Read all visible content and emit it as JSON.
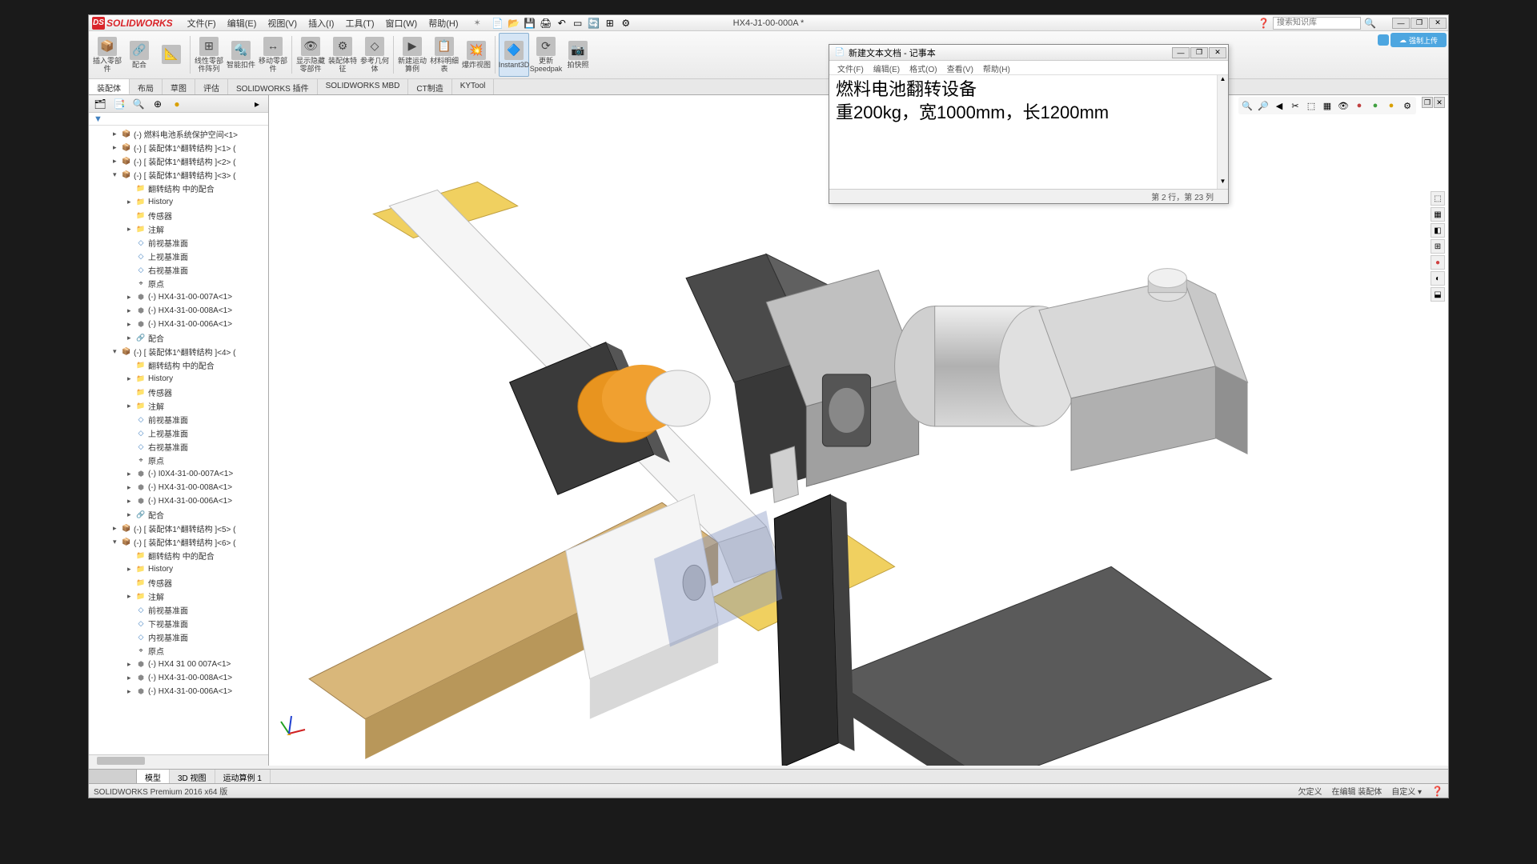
{
  "app": {
    "logo_text": "SOLIDWORKS",
    "doc_title": "HX4-J1-00-000A *",
    "search_placeholder": "搜索知识库",
    "cloud_label": "强制上传"
  },
  "menus": [
    "文件(F)",
    "编辑(E)",
    "视图(V)",
    "插入(I)",
    "工具(T)",
    "窗口(W)",
    "帮助(H)"
  ],
  "ribbon": [
    {
      "label": "插入零部件",
      "icon": "📦"
    },
    {
      "label": "配合",
      "icon": "🔗"
    },
    {
      "label": "",
      "icon": "📐"
    },
    {
      "label": "线性零部件阵列",
      "icon": "⊞"
    },
    {
      "label": "智能扣件",
      "icon": "🔩"
    },
    {
      "label": "移动零部件",
      "icon": "↔"
    },
    {
      "label": "显示隐藏零部件",
      "icon": "👁"
    },
    {
      "label": "装配体特征",
      "icon": "⚙"
    },
    {
      "label": "参考几何体",
      "icon": "◇"
    },
    {
      "label": "新建运动算例",
      "icon": "▶"
    },
    {
      "label": "材料明细表",
      "icon": "📋"
    },
    {
      "label": "爆炸视图",
      "icon": "💥"
    },
    {
      "label": "Instant3D",
      "icon": "🔷",
      "selected": true
    },
    {
      "label": "更新Speedpak",
      "icon": "⟳"
    },
    {
      "label": "拍快照",
      "icon": "📷"
    }
  ],
  "tabs": [
    "装配体",
    "布局",
    "草图",
    "评估",
    "SOLIDWORKS 插件",
    "SOLIDWORKS MBD",
    "CT制造",
    "KYTool"
  ],
  "tree": [
    {
      "lvl": 1,
      "exp": "▸",
      "icon": "asm",
      "label": "(-) 燃料电池系统保护空间<1>"
    },
    {
      "lvl": 1,
      "exp": "▸",
      "icon": "asm",
      "label": "(-) [ 装配体1^翻转结构 ]<1> ("
    },
    {
      "lvl": 1,
      "exp": "▸",
      "icon": "asm",
      "label": "(-) [ 装配体1^翻转结构 ]<2> ("
    },
    {
      "lvl": 1,
      "exp": "▾",
      "icon": "asm",
      "label": "(-) [ 装配体1^翻转结构 ]<3> ("
    },
    {
      "lvl": 2,
      "exp": "",
      "icon": "folder",
      "label": "翻转结构 中的配合"
    },
    {
      "lvl": 2,
      "exp": "▸",
      "icon": "folder",
      "label": "History"
    },
    {
      "lvl": 2,
      "exp": "",
      "icon": "folder",
      "label": "传感器"
    },
    {
      "lvl": 2,
      "exp": "▸",
      "icon": "folder",
      "label": "注解"
    },
    {
      "lvl": 2,
      "exp": "",
      "icon": "plane",
      "label": "前视基准面"
    },
    {
      "lvl": 2,
      "exp": "",
      "icon": "plane",
      "label": "上视基准面"
    },
    {
      "lvl": 2,
      "exp": "",
      "icon": "plane",
      "label": "右视基准面"
    },
    {
      "lvl": 2,
      "exp": "",
      "icon": "origin",
      "label": "原点"
    },
    {
      "lvl": 2,
      "exp": "▸",
      "icon": "part",
      "label": "(-) HX4-31-00-007A<1>"
    },
    {
      "lvl": 2,
      "exp": "▸",
      "icon": "part",
      "label": "(-) HX4-31-00-008A<1>"
    },
    {
      "lvl": 2,
      "exp": "▸",
      "icon": "part",
      "label": "(-) HX4-31-00-006A<1>"
    },
    {
      "lvl": 2,
      "exp": "▸",
      "icon": "mate",
      "label": "配合"
    },
    {
      "lvl": 1,
      "exp": "▾",
      "icon": "asm",
      "label": "(-) [ 装配体1^翻转结构 ]<4> ("
    },
    {
      "lvl": 2,
      "exp": "",
      "icon": "folder",
      "label": "翻转结构 中的配合"
    },
    {
      "lvl": 2,
      "exp": "▸",
      "icon": "folder",
      "label": "History"
    },
    {
      "lvl": 2,
      "exp": "",
      "icon": "folder",
      "label": "传感器"
    },
    {
      "lvl": 2,
      "exp": "▸",
      "icon": "folder",
      "label": "注解"
    },
    {
      "lvl": 2,
      "exp": "",
      "icon": "plane",
      "label": "前视基准面"
    },
    {
      "lvl": 2,
      "exp": "",
      "icon": "plane",
      "label": "上视基准面"
    },
    {
      "lvl": 2,
      "exp": "",
      "icon": "plane",
      "label": "右视基准面"
    },
    {
      "lvl": 2,
      "exp": "",
      "icon": "origin",
      "label": "原点"
    },
    {
      "lvl": 2,
      "exp": "▸",
      "icon": "part",
      "label": "(-) I0X4-31-00-007A<1>"
    },
    {
      "lvl": 2,
      "exp": "▸",
      "icon": "part",
      "label": "(-) HX4-31-00-008A<1>"
    },
    {
      "lvl": 2,
      "exp": "▸",
      "icon": "part",
      "label": "(-) HX4-31-00-006A<1>"
    },
    {
      "lvl": 2,
      "exp": "▸",
      "icon": "mate",
      "label": "配合"
    },
    {
      "lvl": 1,
      "exp": "▸",
      "icon": "asm",
      "label": "(-) [ 装配体1^翻转结构 ]<5> ("
    },
    {
      "lvl": 1,
      "exp": "▾",
      "icon": "asm",
      "label": "(-) [ 装配体1^翻转结构 ]<6> ("
    },
    {
      "lvl": 2,
      "exp": "",
      "icon": "folder",
      "label": "翻转结构 中的配合"
    },
    {
      "lvl": 2,
      "exp": "▸",
      "icon": "folder",
      "label": "History"
    },
    {
      "lvl": 2,
      "exp": "",
      "icon": "folder",
      "label": "传感器"
    },
    {
      "lvl": 2,
      "exp": "▸",
      "icon": "folder",
      "label": "注解"
    },
    {
      "lvl": 2,
      "exp": "",
      "icon": "plane",
      "label": "前视基准面"
    },
    {
      "lvl": 2,
      "exp": "",
      "icon": "plane",
      "label": "下视基准面"
    },
    {
      "lvl": 2,
      "exp": "",
      "icon": "plane",
      "label": "内视基准面"
    },
    {
      "lvl": 2,
      "exp": "",
      "icon": "origin",
      "label": "原点"
    },
    {
      "lvl": 2,
      "exp": "▸",
      "icon": "part",
      "label": "(-) HX4 31 00 007A<1>"
    },
    {
      "lvl": 2,
      "exp": "▸",
      "icon": "part",
      "label": "(-) HX4-31-00-008A<1>"
    },
    {
      "lvl": 2,
      "exp": "▸",
      "icon": "part",
      "label": "(-) HX4-31-00-006A<1>"
    }
  ],
  "bottom_tabs": [
    "模型",
    "3D 视图",
    "运动算例 1"
  ],
  "status": {
    "left": "SOLIDWORKS Premium 2016 x64 版",
    "right": [
      "欠定义",
      "在编辑 装配体",
      "自定义 ▾"
    ]
  },
  "notepad": {
    "title": "新建文本文档 - 记事本",
    "menus": [
      "文件(F)",
      "编辑(E)",
      "格式(O)",
      "查看(V)",
      "帮助(H)"
    ],
    "line1": "燃料电池翻转设备",
    "line2": "重200kg，宽1000mm，长1200mm",
    "status": "第 2 行，第 23 列"
  },
  "colors": {
    "sw_red": "#d9252a",
    "cloud_blue": "#4da6e0",
    "orange_part": "#e8941f",
    "steel_light": "#e0e0e0",
    "steel_mid": "#b8b8b8",
    "steel_dark": "#888888",
    "wood": "#d9b77a"
  }
}
